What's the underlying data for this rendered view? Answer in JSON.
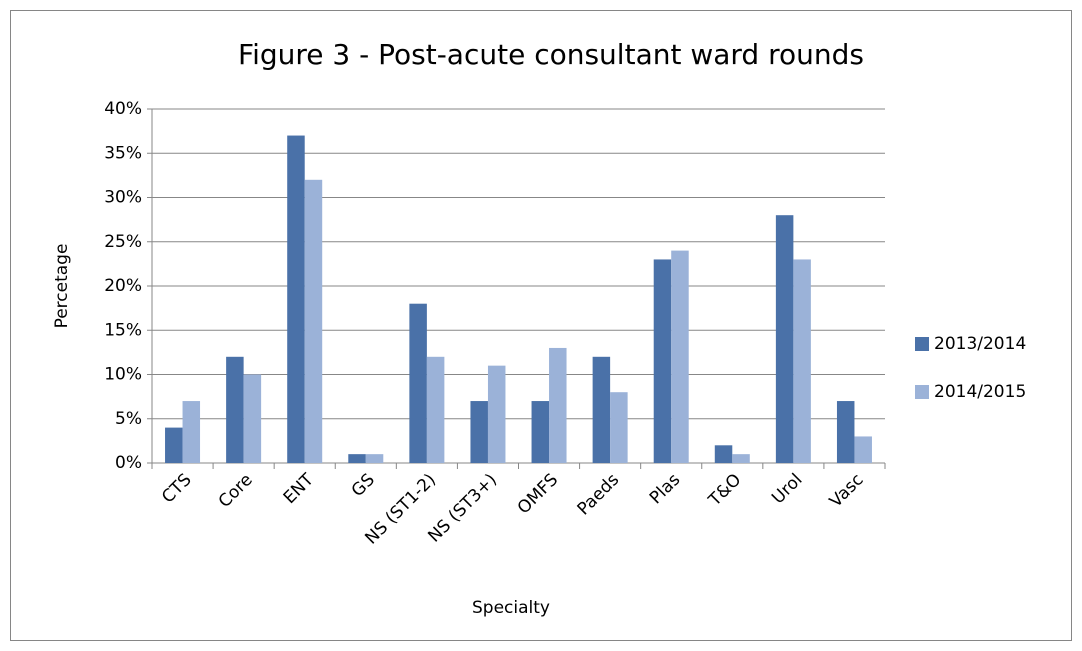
{
  "chart_data": {
    "type": "bar",
    "title": "Figure 3 - Post-acute consultant ward rounds",
    "x_label": "Specialty",
    "y_label": "Percetage",
    "categories": [
      "CTS",
      "Core",
      "ENT",
      "GS",
      "NS (ST1-2)",
      "NS (ST3+)",
      "OMFS",
      "Paeds",
      "Plas",
      "T&O",
      "Urol",
      "Vasc"
    ],
    "series": [
      {
        "name": "2013/2014",
        "color": "#4a71a8",
        "values": [
          4,
          12,
          37,
          1,
          18,
          7,
          7,
          12,
          23,
          2,
          28,
          7
        ]
      },
      {
        "name": "2014/2015",
        "color": "#9bb2d8",
        "values": [
          7,
          10,
          32,
          1,
          12,
          11,
          13,
          8,
          24,
          1,
          23,
          3
        ]
      }
    ],
    "ylim": [
      0,
      40
    ],
    "yticks": [
      {
        "value": 0,
        "label": "0%"
      },
      {
        "value": 5,
        "label": "5%"
      },
      {
        "value": 10,
        "label": "10%"
      },
      {
        "value": 15,
        "label": "15%"
      },
      {
        "value": 20,
        "label": "20%"
      },
      {
        "value": 25,
        "label": "25%"
      },
      {
        "value": 30,
        "label": "30%"
      },
      {
        "value": 35,
        "label": "35%"
      },
      {
        "value": 40,
        "label": "40%"
      }
    ],
    "grid": true,
    "legend": "right"
  }
}
